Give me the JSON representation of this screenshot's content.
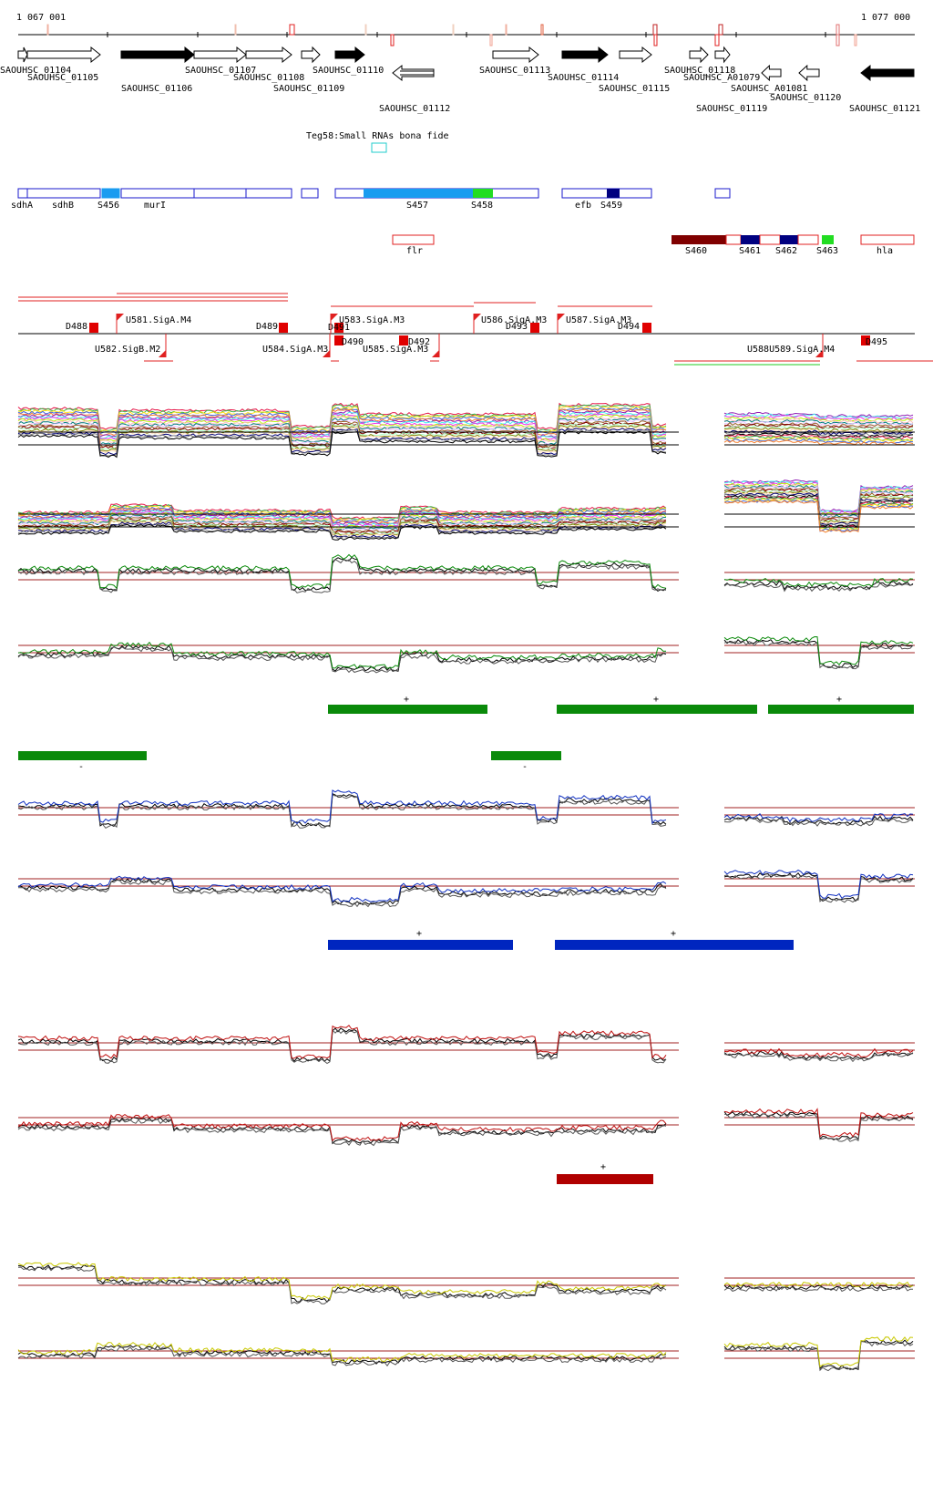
{
  "coordinates": {
    "start": "1 067 001",
    "end": "1 077 000"
  },
  "genes": [
    {
      "label": "SAOUHSC_01104",
      "strand": "+",
      "filled": false
    },
    {
      "label": "SAOUHSC_01105",
      "strand": "+",
      "filled": false
    },
    {
      "label": "SAOUHSC_01106",
      "strand": "+",
      "filled": true
    },
    {
      "label": "SAOUHSC_01107",
      "strand": "+",
      "filled": false
    },
    {
      "label": "SAOUHSC_01108",
      "strand": "+",
      "filled": false
    },
    {
      "label": "SAOUHSC_01109",
      "strand": "+",
      "filled": false
    },
    {
      "label": "SAOUHSC_01110",
      "strand": "+",
      "filled": true
    },
    {
      "label": "SAOUHSC_01112",
      "strand": "-",
      "filled": false
    },
    {
      "label": "SAOUHSC_01113",
      "strand": "+",
      "filled": false
    },
    {
      "label": "SAOUHSC_01114",
      "strand": "+",
      "filled": true
    },
    {
      "label": "SAOUHSC_01115",
      "strand": "+",
      "filled": false
    },
    {
      "label": "SAOUHSC_01118",
      "strand": "+",
      "filled": false
    },
    {
      "label": "SAOUHSC_A01079",
      "strand": "+",
      "filled": false
    },
    {
      "label": "SAOUHSC_A01081",
      "strand": "-",
      "filled": false
    },
    {
      "label": "SAOUHSC_01119",
      "strand": "-",
      "filled": false
    },
    {
      "label": "SAOUHSC_01120",
      "strand": "-",
      "filled": false
    },
    {
      "label": "SAOUHSC_01121",
      "strand": "-",
      "filled": true
    }
  ],
  "small_rna": {
    "label": "Teg58:Small RNAs bona fide"
  },
  "annotations_row1": [
    "sdhA",
    "sdhB",
    "S456",
    "murI",
    "S457",
    "S458",
    "efb",
    "S459"
  ],
  "annotations_row2": [
    "flr",
    "S460",
    "S461",
    "S462",
    "S463",
    "hla"
  ],
  "promoters": [
    "D488",
    "U581.SigA.M4",
    "U582.SigB.M2",
    "D489",
    "U584.SigA.M3",
    "D491",
    "U583.SigA.M3",
    "D490",
    "U585.SigA.M3",
    "D492",
    "U586.SigA.M3",
    "D493",
    "U587.SigA.M3",
    "D494",
    "U588U589.SigA.M4",
    "D495"
  ],
  "tracks": {
    "heatmap_a": {
      "color": "multi"
    },
    "heatmap_b": {
      "color": "multi"
    },
    "green_pair": {
      "color": "#0a8a0a"
    },
    "blue_pair": {
      "color": "#1030c0"
    },
    "red_pair": {
      "color": "#c01010"
    },
    "yellow_pair": {
      "color": "#c8c800"
    }
  },
  "segments": {
    "green_plus": {
      "strand": "+",
      "color": "#0a8a0a"
    },
    "green_minus": {
      "strand": "-",
      "color": "#0a8a0a"
    },
    "blue_plus": {
      "strand": "+",
      "color": "#0026bf"
    },
    "red_plus": {
      "strand": "+",
      "color": "#b00000"
    }
  },
  "colors": {
    "annotation_blue": "#1a1acc",
    "annotation_cyan": "#1a9cf0",
    "annotation_green": "#22dd22",
    "annotation_navy": "#000080",
    "annotation_maroon": "#800000",
    "feature_red": "#e02020",
    "threshold": "#a02020"
  }
}
